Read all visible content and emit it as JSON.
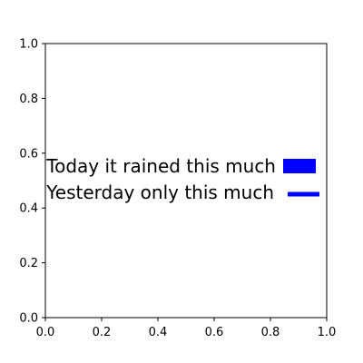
{
  "chart_data": {
    "type": "line",
    "title": "",
    "xlabel": "",
    "ylabel": "",
    "xlim": [
      0.0,
      1.0
    ],
    "ylim": [
      0.0,
      1.0
    ],
    "x_ticks": [
      "0.0",
      "0.2",
      "0.4",
      "0.6",
      "0.8",
      "1.0"
    ],
    "y_ticks": [
      "0.0",
      "0.2",
      "0.4",
      "0.6",
      "0.8",
      "1.0"
    ],
    "grid": false,
    "series": [],
    "legend": {
      "placement": "center right",
      "entries": [
        {
          "label": "Today it rained this much",
          "marker": "filled-rectangle",
          "color": "#0000ff"
        },
        {
          "label": "Yesterday only this much",
          "marker": "line",
          "color": "#0000ff"
        }
      ]
    }
  }
}
